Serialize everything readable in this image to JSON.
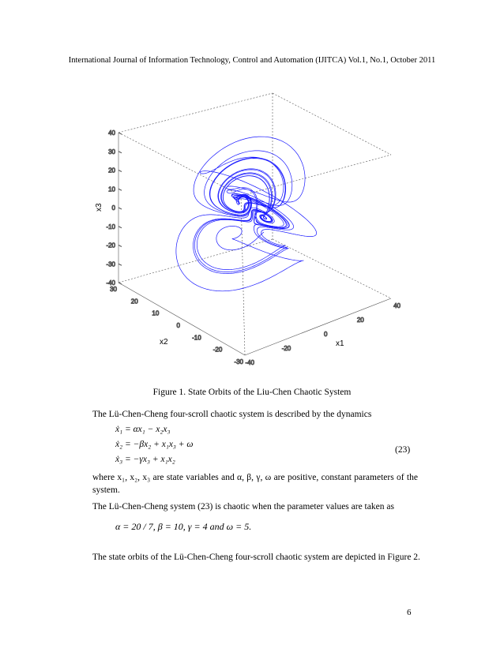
{
  "header": "International Journal of Information Technology, Control and Automation (IJITCA) Vol.1, No.1, October 2011",
  "figure": {
    "axis_x3_label": "x3",
    "axis_x2_label": "x2",
    "axis_x1_label": "x1",
    "z_ticks": [
      "40",
      "30",
      "20",
      "10",
      "0",
      "-10",
      "-20",
      "-30",
      "-40"
    ],
    "y_ticks": [
      "30",
      "20",
      "10",
      "0",
      "-10",
      "-20",
      "-30"
    ],
    "x_ticks": [
      "-40",
      "-20",
      "0",
      "20",
      "40"
    ],
    "curve_color": "#1a1aff"
  },
  "caption": "Figure 1.  State Orbits of the Liu-Chen Chaotic System",
  "intro": "The Lü-Chen-Cheng four-scroll chaotic system is described by the dynamics",
  "equations": [
    "ẋ₁ = αx₁ − x₂x₃",
    "ẋ₂ = −βx₂ + x₁x₃ + ω",
    "ẋ₃ = −γx₃ + x₁x₂"
  ],
  "equation_number": "(23)",
  "where_text": "where  x₁, x₂, x₃  are state variables and  α, β, γ, ω are positive, constant parameters of the system.",
  "chaotic_text": "The Lü-Chen-Cheng system (23) is chaotic when the parameter values are taken as",
  "params_text": "α = 20 / 7,   β = 10,   γ = 4   and   ω = 5.",
  "figure2_text": "The state orbits of the Lü-Chen-Cheng four-scroll chaotic system are depicted in Figure 2.",
  "page_number": "6"
}
